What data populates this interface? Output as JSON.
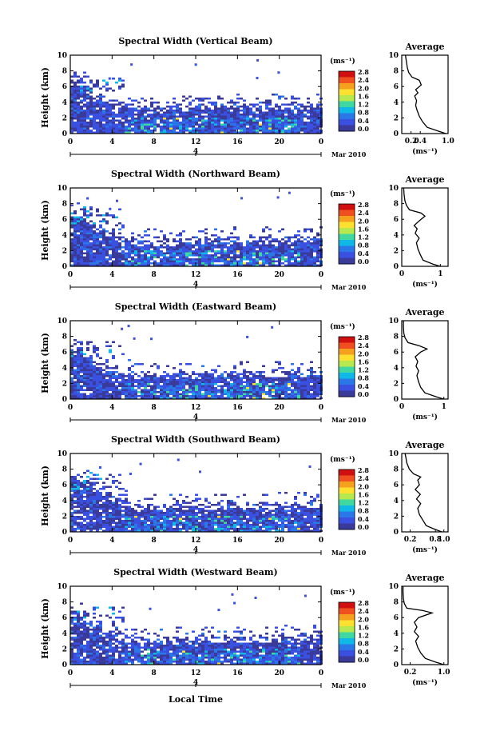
{
  "figure": {
    "xlabel": "Local Time",
    "date_label": "Mar 2010",
    "day_label": "4",
    "ylabel": "Height (km)",
    "unit_label": "(ms⁻¹)",
    "average_title": "Average",
    "average_xlabel": "(ms⁻¹)",
    "colorbar_ticks": [
      "2.8",
      "2.4",
      "2.0",
      "1.6",
      "1.2",
      "0.8",
      "0.4",
      "0.0"
    ],
    "colorbar_colors": [
      "#d01010",
      "#f05020",
      "#f6a020",
      "#fee030",
      "#b8e850",
      "#40d8a0",
      "#10b8e8",
      "#2a78e8",
      "#3a50e0",
      "#3a3a9a"
    ],
    "time_ticks": [
      "0",
      "4",
      "8",
      "12",
      "16",
      "20",
      "0"
    ],
    "height_ticks": [
      "0",
      "2",
      "4",
      "6",
      "8",
      "10"
    ]
  },
  "chart_data": [
    {
      "type": "heatmap",
      "title": "Spectral Width (Vertical Beam)",
      "x_range_hours": [
        0,
        24
      ],
      "ylim": [
        0,
        10
      ],
      "cloud_tops_km": [
        7.0,
        6.6,
        5.0,
        4.6,
        4.2,
        4.0,
        3.8,
        3.7,
        3.7,
        3.8,
        3.8,
        3.9,
        4.0,
        4.0,
        4.0,
        4.0,
        3.9,
        3.9,
        3.9,
        3.9,
        4.0,
        4.0,
        4.0,
        4.0
      ],
      "average": {
        "xlim": [
          0,
          1.0
        ],
        "xticks": [
          "0.2",
          "0.4",
          "1.0"
        ],
        "profile": [
          [
            0.95,
            0
          ],
          [
            0.8,
            0.3
          ],
          [
            0.55,
            0.8
          ],
          [
            0.45,
            1.5
          ],
          [
            0.38,
            2.2
          ],
          [
            0.33,
            3.0
          ],
          [
            0.3,
            3.6
          ],
          [
            0.32,
            4.2
          ],
          [
            0.28,
            4.8
          ],
          [
            0.35,
            5.2
          ],
          [
            0.3,
            5.6
          ],
          [
            0.42,
            6.2
          ],
          [
            0.38,
            6.8
          ],
          [
            0.22,
            7.2
          ],
          [
            0.15,
            7.8
          ],
          [
            0.12,
            8.4
          ],
          [
            0.1,
            9.2
          ],
          [
            0.08,
            10
          ]
        ]
      }
    },
    {
      "type": "heatmap",
      "title": "Spectral Width (Northward Beam)",
      "x_range_hours": [
        0,
        24
      ],
      "ylim": [
        0,
        10
      ],
      "cloud_tops_km": [
        7.2,
        6.8,
        5.4,
        4.8,
        4.2,
        3.9,
        3.7,
        3.6,
        3.6,
        3.6,
        3.7,
        3.7,
        3.8,
        3.8,
        3.8,
        3.8,
        3.7,
        3.8,
        3.8,
        3.9,
        3.9,
        4.0,
        4.0,
        4.0
      ],
      "average": {
        "xlim": [
          0,
          1.2
        ],
        "xticks": [
          "0",
          "1"
        ],
        "profile": [
          [
            1.0,
            0
          ],
          [
            0.8,
            0.3
          ],
          [
            0.55,
            0.8
          ],
          [
            0.48,
            1.5
          ],
          [
            0.42,
            2.2
          ],
          [
            0.38,
            3.0
          ],
          [
            0.45,
            3.6
          ],
          [
            0.35,
            4.2
          ],
          [
            0.4,
            4.8
          ],
          [
            0.32,
            5.2
          ],
          [
            0.45,
            5.8
          ],
          [
            0.6,
            6.4
          ],
          [
            0.5,
            6.8
          ],
          [
            0.2,
            7.2
          ],
          [
            0.12,
            7.8
          ],
          [
            0.08,
            8.4
          ],
          [
            0.06,
            9.2
          ],
          [
            0.05,
            10
          ]
        ]
      }
    },
    {
      "type": "heatmap",
      "title": "Spectral Width (Eastward Beam)",
      "x_range_hours": [
        0,
        24
      ],
      "ylim": [
        0,
        10
      ],
      "cloud_tops_km": [
        6.8,
        6.2,
        5.0,
        4.5,
        4.0,
        3.8,
        3.6,
        3.5,
        3.5,
        3.6,
        3.6,
        3.7,
        3.7,
        3.8,
        3.8,
        3.8,
        3.8,
        3.8,
        3.7,
        3.7,
        3.8,
        3.8,
        3.8,
        3.8
      ],
      "average": {
        "xlim": [
          0,
          1.1
        ],
        "xticks": [
          "0",
          "1"
        ],
        "profile": [
          [
            1.0,
            0
          ],
          [
            0.82,
            0.3
          ],
          [
            0.55,
            0.8
          ],
          [
            0.45,
            1.5
          ],
          [
            0.4,
            2.2
          ],
          [
            0.36,
            3.0
          ],
          [
            0.4,
            3.6
          ],
          [
            0.34,
            4.2
          ],
          [
            0.38,
            4.8
          ],
          [
            0.32,
            5.4
          ],
          [
            0.45,
            6.0
          ],
          [
            0.6,
            6.4
          ],
          [
            0.42,
            6.8
          ],
          [
            0.15,
            7.2
          ],
          [
            0.08,
            7.8
          ],
          [
            0.05,
            8.4
          ],
          [
            0.04,
            9.2
          ],
          [
            0.04,
            10
          ]
        ]
      }
    },
    {
      "type": "heatmap",
      "title": "Spectral Width (Southward Beam)",
      "x_range_hours": [
        0,
        24
      ],
      "ylim": [
        0,
        10
      ],
      "cloud_tops_km": [
        7.4,
        6.8,
        5.8,
        5.0,
        4.4,
        4.0,
        3.8,
        3.7,
        3.6,
        3.6,
        3.7,
        3.7,
        3.8,
        3.8,
        3.9,
        3.9,
        3.8,
        3.8,
        3.9,
        3.9,
        4.0,
        4.0,
        4.0,
        4.0
      ],
      "average": {
        "xlim": [
          0,
          1.1
        ],
        "xticks": [
          "0.2",
          "0.8",
          "1.0"
        ],
        "profile": [
          [
            0.95,
            0
          ],
          [
            0.8,
            0.3
          ],
          [
            0.58,
            0.8
          ],
          [
            0.5,
            1.5
          ],
          [
            0.42,
            2.2
          ],
          [
            0.38,
            3.0
          ],
          [
            0.45,
            3.6
          ],
          [
            0.35,
            4.2
          ],
          [
            0.44,
            4.8
          ],
          [
            0.32,
            5.4
          ],
          [
            0.42,
            6.0
          ],
          [
            0.38,
            6.6
          ],
          [
            0.45,
            7.0
          ],
          [
            0.28,
            7.4
          ],
          [
            0.18,
            8.0
          ],
          [
            0.12,
            8.8
          ],
          [
            0.1,
            9.4
          ],
          [
            0.08,
            10
          ]
        ]
      }
    },
    {
      "type": "heatmap",
      "title": "Spectral Width (Westward Beam)",
      "x_range_hours": [
        0,
        24
      ],
      "ylim": [
        0,
        10
      ],
      "cloud_tops_km": [
        7.0,
        6.6,
        5.4,
        4.6,
        4.0,
        3.8,
        3.6,
        3.5,
        3.5,
        3.6,
        3.6,
        3.7,
        3.8,
        3.8,
        3.8,
        3.8,
        3.8,
        3.8,
        3.8,
        3.8,
        3.9,
        3.9,
        4.0,
        4.0
      ],
      "average": {
        "xlim": [
          0,
          1.1
        ],
        "xticks": [
          "0.2",
          "1.0"
        ],
        "profile": [
          [
            1.0,
            0
          ],
          [
            0.82,
            0.3
          ],
          [
            0.56,
            0.8
          ],
          [
            0.45,
            1.5
          ],
          [
            0.38,
            2.2
          ],
          [
            0.33,
            3.0
          ],
          [
            0.4,
            3.6
          ],
          [
            0.3,
            4.2
          ],
          [
            0.36,
            4.8
          ],
          [
            0.3,
            5.4
          ],
          [
            0.4,
            6.0
          ],
          [
            0.72,
            6.6
          ],
          [
            0.5,
            6.9
          ],
          [
            0.12,
            7.2
          ],
          [
            0.06,
            7.8
          ],
          [
            0.04,
            8.4
          ],
          [
            0.03,
            9.2
          ],
          [
            0.03,
            10
          ]
        ]
      }
    }
  ]
}
